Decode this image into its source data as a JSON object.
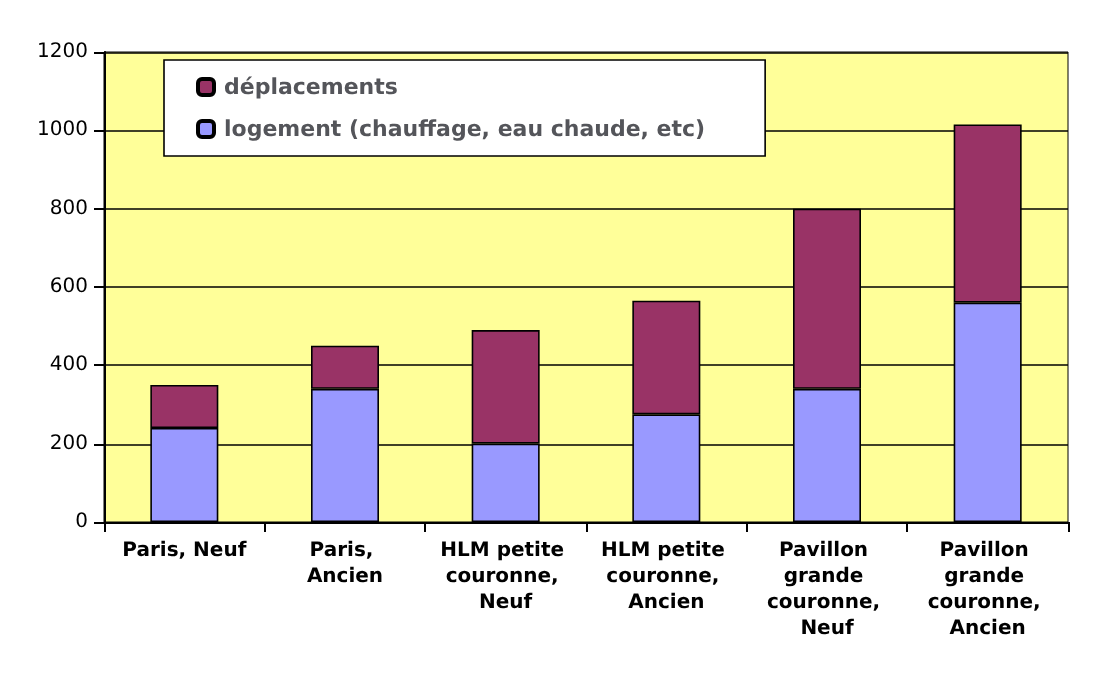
{
  "chart_data": {
    "type": "bar",
    "stacked": true,
    "categories": [
      "Paris, Neuf",
      "Paris, Ancien",
      "HLM petite couronne, Neuf",
      "HLM petite couronne, Ancien",
      "Pavillon grande couronne, Neuf",
      "Pavillon grande couronne, Ancien"
    ],
    "series": [
      {
        "name": "logement (chauffage, eau chaude, etc)",
        "color": "#9999ff",
        "values": [
          240,
          340,
          200,
          275,
          340,
          560
        ]
      },
      {
        "name": "déplacements",
        "color": "#993366",
        "values": [
          110,
          110,
          290,
          290,
          460,
          455
        ]
      }
    ],
    "ylim": [
      0,
      1200
    ],
    "yticks": [
      0,
      200,
      400,
      600,
      800,
      1000,
      1200
    ],
    "grid": "y",
    "legend": "top left"
  }
}
